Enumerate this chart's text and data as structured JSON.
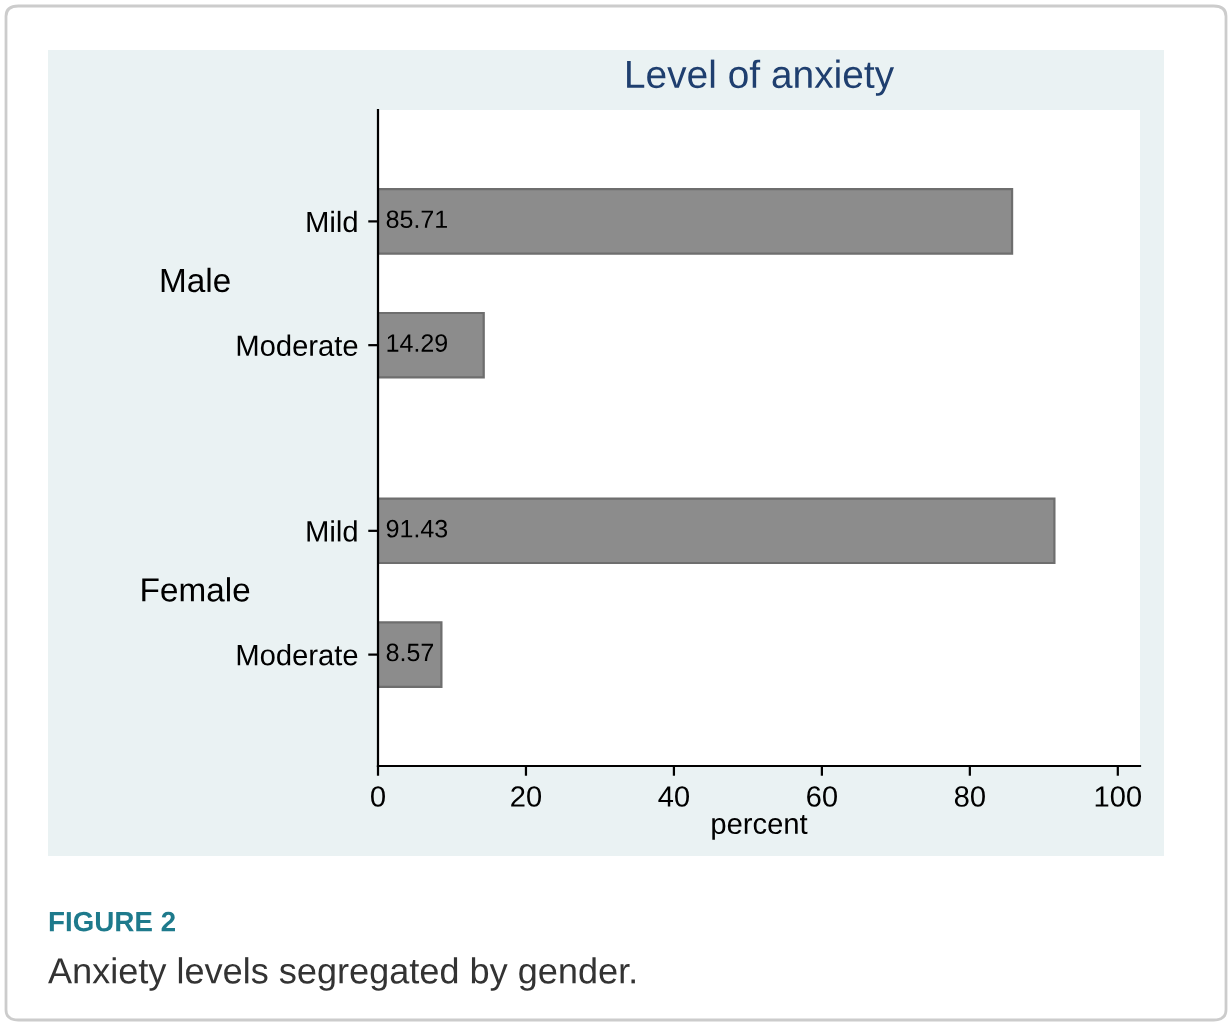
{
  "chart_data": {
    "type": "bar",
    "orientation": "horizontal",
    "title": "Level of anxiety",
    "xlabel": "percent",
    "categories": [
      "Mild",
      "Moderate",
      "Mild",
      "Moderate"
    ],
    "values": [
      85.71,
      14.29,
      91.43,
      8.57
    ],
    "color": "#8c8c8c",
    "xlim": [
      0,
      103
    ],
    "xticks": [
      0,
      20,
      40,
      60,
      80,
      100
    ],
    "data_labels": true,
    "grid": false,
    "legend": false,
    "annotations": [
      "Male",
      "Female",
      "FIGURE 2",
      "Anxiety levels segregated by gender."
    ]
  }
}
